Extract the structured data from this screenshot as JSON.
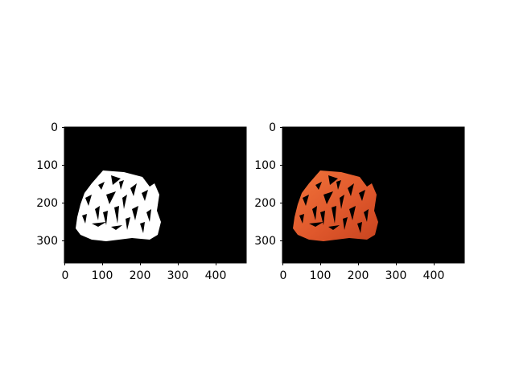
{
  "figure": {
    "background": "#ffffff",
    "panels": [
      {
        "name": "mask",
        "image_kind": "binary segmentation mask",
        "background_color": "#000000",
        "foreground_color": "#ffffff",
        "image_width": 480,
        "image_height": 360,
        "x_ticks": [
          0,
          100,
          200,
          300,
          400
        ],
        "y_ticks": [
          0,
          100,
          200,
          300
        ],
        "x_tick_labels": [
          "0",
          "100",
          "200",
          "300",
          "400"
        ],
        "y_tick_labels": [
          "0",
          "100",
          "200",
          "300"
        ]
      },
      {
        "name": "masked-image",
        "image_kind": "masked color image",
        "background_color": "#000000",
        "foreground_color": "#e0582c",
        "image_width": 480,
        "image_height": 360,
        "x_ticks": [
          0,
          100,
          200,
          300,
          400
        ],
        "y_ticks": [
          0,
          100,
          200,
          300
        ],
        "x_tick_labels": [
          "0",
          "100",
          "200",
          "300",
          "400"
        ],
        "y_tick_labels": [
          "0",
          "100",
          "200",
          "300"
        ]
      }
    ]
  }
}
